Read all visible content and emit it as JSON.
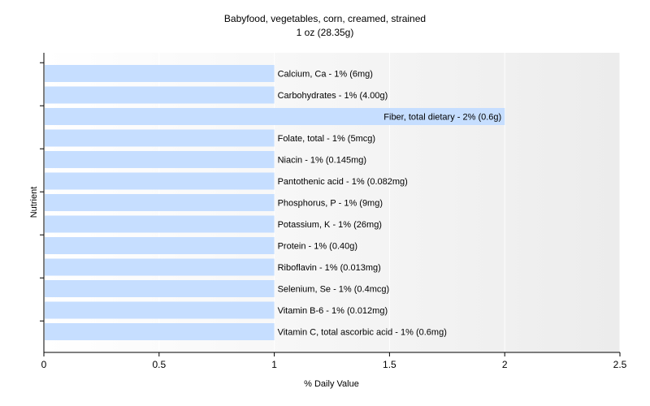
{
  "chart_data": {
    "type": "bar",
    "orientation": "horizontal",
    "title": "Babyfood, vegetables, corn, creamed, strained",
    "subtitle": "1 oz (28.35g)",
    "xlabel": "% Daily Value",
    "ylabel": "Nutrient",
    "xlim": [
      0,
      2.5
    ],
    "xticks": [
      "0",
      "0.5",
      "1",
      "1.5",
      "2",
      "2.5"
    ],
    "grid": true,
    "bar_color": "#c6deff",
    "categories": [
      "Calcium, Ca",
      "Carbohydrates",
      "Fiber, total dietary",
      "Folate, total",
      "Niacin",
      "Pantothenic acid",
      "Phosphorus, P",
      "Potassium, K",
      "Protein",
      "Riboflavin",
      "Selenium, Se",
      "Vitamin B-6",
      "Vitamin C, total ascorbic acid"
    ],
    "values": [
      1,
      1,
      2,
      1,
      1,
      1,
      1,
      1,
      1,
      1,
      1,
      1,
      1
    ],
    "labels": [
      "Calcium, Ca - 1% (6mg)",
      "Carbohydrates - 1% (4.00g)",
      "Fiber, total dietary - 2% (0.6g)",
      "Folate, total - 1% (5mcg)",
      "Niacin - 1% (0.145mg)",
      "Pantothenic acid - 1% (0.082mg)",
      "Phosphorus, P - 1% (9mg)",
      "Potassium, K - 1% (26mg)",
      "Protein - 1% (0.40g)",
      "Riboflavin - 1% (0.013mg)",
      "Selenium, Se - 1% (0.4mcg)",
      "Vitamin B-6 - 1% (0.012mg)",
      "Vitamin C, total ascorbic acid - 1% (0.6mg)"
    ]
  }
}
